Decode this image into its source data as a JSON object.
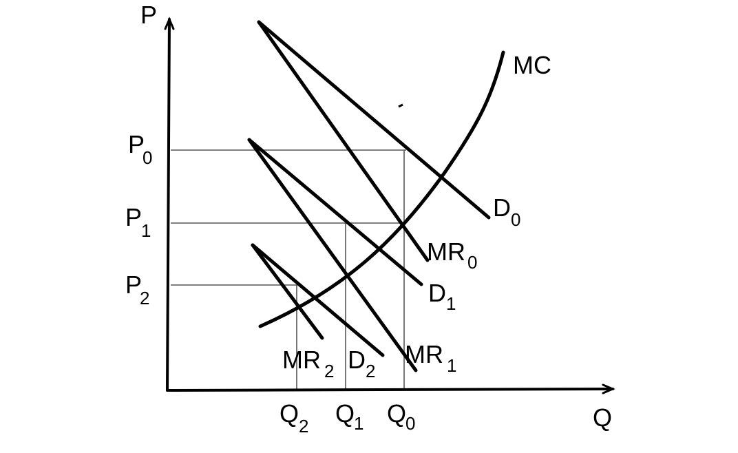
{
  "axes": {
    "y_label": "P",
    "x_label": "Q"
  },
  "price_labels": [
    {
      "id": "p0",
      "main": "P",
      "sub": "0"
    },
    {
      "id": "p1",
      "main": "P",
      "sub": "1"
    },
    {
      "id": "p2",
      "main": "P",
      "sub": "2"
    }
  ],
  "quantity_labels": [
    {
      "id": "q2",
      "main": "Q",
      "sub": "2"
    },
    {
      "id": "q1",
      "main": "Q",
      "sub": "1"
    },
    {
      "id": "q0",
      "main": "Q",
      "sub": "0"
    }
  ],
  "curves": {
    "mc": "MC",
    "d0": {
      "main": "D",
      "sub": "0"
    },
    "mr0": {
      "main": "MR",
      "sub": "0"
    },
    "d1": {
      "main": "D",
      "sub": "1"
    },
    "mr1": {
      "main": "MR",
      "sub": "1"
    },
    "d2": {
      "main": "D",
      "sub": "2"
    },
    "mr2": {
      "main": "MR",
      "sub": "2"
    }
  },
  "colors": {
    "line": "#000000",
    "guide": "#555555",
    "background": "#ffffff"
  }
}
